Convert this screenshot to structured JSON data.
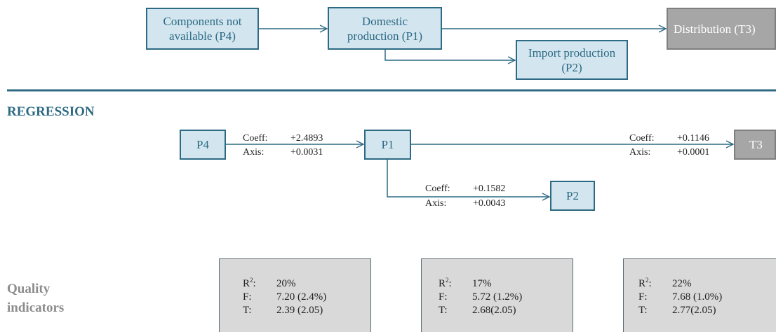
{
  "flow": {
    "p4": {
      "line1": "Components not",
      "line2": "available (P4)"
    },
    "p1": {
      "line1": "Domestic",
      "line2": "production (P1)"
    },
    "p2": {
      "line1": "Import production",
      "line2": "(P2)"
    },
    "t3": {
      "label": "Distribution (T3)"
    }
  },
  "regression": {
    "heading": "REGRESSION",
    "nodes": {
      "p4": "P4",
      "p1": "P1",
      "p2": "P2",
      "t3": "T3"
    },
    "links": {
      "p4_p1": {
        "coeff_label": "Coeff:",
        "coeff": "+2.4893",
        "axis_label": "Axis:",
        "axis": "+0.0031"
      },
      "p1_t3": {
        "coeff_label": "Coeff:",
        "coeff": "+0.1146",
        "axis_label": "Axis:",
        "axis": "+0.0001"
      },
      "p1_p2": {
        "coeff_label": "Coeff:",
        "coeff": "+0.1582",
        "axis_label": "Axis:",
        "axis": "+0.0043"
      }
    }
  },
  "quality": {
    "heading_line1": "Quality",
    "heading_line2": "indicators",
    "boxes": [
      {
        "r2_label": "R",
        "r2_sup": "2",
        "r2_colon": ":",
        "r2": "20%",
        "f_label": "F:",
        "f": "7.20 (2.4%)",
        "t_label": "T:",
        "t": "2.39 (2.05)"
      },
      {
        "r2_label": "R",
        "r2_sup": "2",
        "r2_colon": ":",
        "r2": "17%",
        "f_label": "F:",
        "f": "5.72 (1.2%)",
        "t_label": "T:",
        "t": "2.68(2.05)"
      },
      {
        "r2_label": "R",
        "r2_sup": "2",
        "r2_colon": ":",
        "r2": "22%",
        "f_label": "F:",
        "f": "7.68 (1.0%)",
        "t_label": "T:",
        "t": "2.77(2.05)"
      }
    ]
  },
  "colors": {
    "accent": "#2d6a84",
    "box_fill": "#d3e6f0",
    "dark_box": "#a6a6a6",
    "heading_gray": "#8c8c8c",
    "quality_fill": "#d9d9d9"
  }
}
